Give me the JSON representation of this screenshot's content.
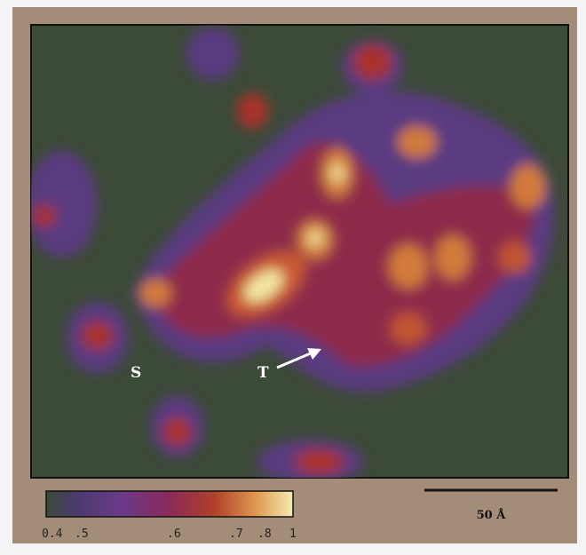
{
  "map_labels": [
    "S",
    "T"
  ],
  "colorbar_labels": [
    "0.4",
    ".5",
    ".6",
    ".7",
    ".8",
    "1"
  ],
  "scale_bar": "50 Å"
}
